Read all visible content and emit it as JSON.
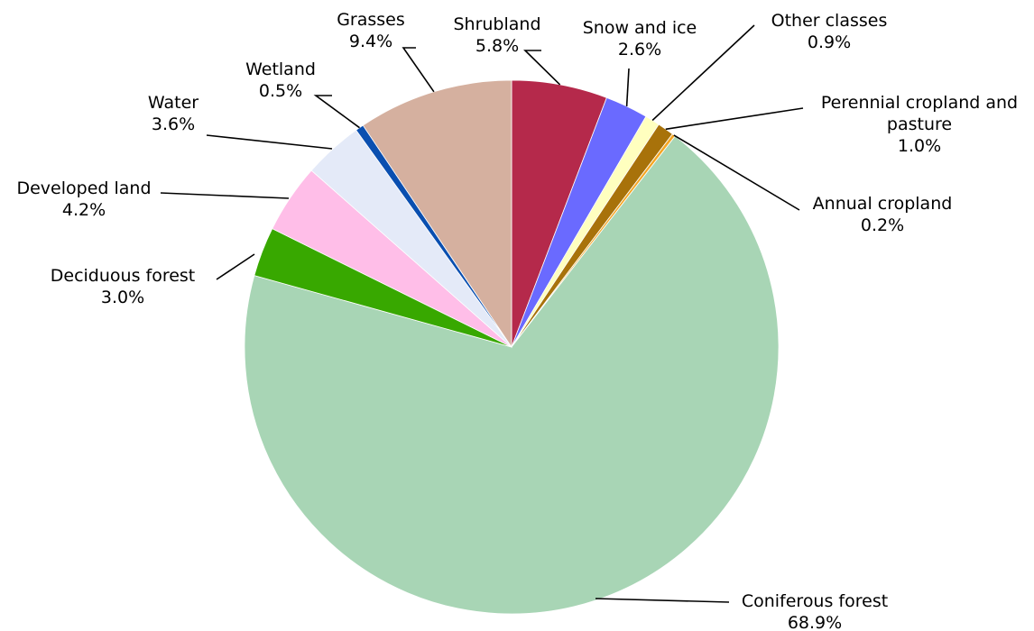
{
  "chart_data": {
    "type": "pie",
    "start": "12 o'clock",
    "direction": "clockwise",
    "slices": [
      {
        "name": "Shrubland",
        "lines": [
          "Shrubland"
        ],
        "value": 5.8,
        "value_label": "5.8%",
        "color": "#B5294B"
      },
      {
        "name": "Snow and ice",
        "lines": [
          "Snow and ice"
        ],
        "value": 2.6,
        "value_label": "2.6%",
        "color": "#6A6AFF"
      },
      {
        "name": "Other classes",
        "lines": [
          "Other classes"
        ],
        "value": 0.9,
        "value_label": "0.9%",
        "color": "#FFFFBF"
      },
      {
        "name": "Perennial cropland and pasture",
        "lines": [
          "Perennial cropland and",
          "pasture"
        ],
        "value": 1.0,
        "value_label": "1.0%",
        "color": "#A8720A"
      },
      {
        "name": "Annual cropland",
        "lines": [
          "Annual cropland"
        ],
        "value": 0.2,
        "value_label": "0.2%",
        "color": "#F5A623"
      },
      {
        "name": "Coniferous forest",
        "lines": [
          "Coniferous forest"
        ],
        "value": 68.9,
        "value_label": "68.9%",
        "color": "#A8D5B5"
      },
      {
        "name": "Deciduous forest",
        "lines": [
          "Deciduous forest"
        ],
        "value": 3.0,
        "value_label": "3.0%",
        "color": "#38A800"
      },
      {
        "name": "Developed land",
        "lines": [
          "Developed land"
        ],
        "value": 4.2,
        "value_label": "4.2%",
        "color": "#FFBEE8"
      },
      {
        "name": "Water",
        "lines": [
          "Water"
        ],
        "value": 3.6,
        "value_label": "3.6%",
        "color": "#E4EAF8"
      },
      {
        "name": "Wetland",
        "lines": [
          "Wetland"
        ],
        "value": 0.5,
        "value_label": "0.5%",
        "color": "#0A4FB0"
      },
      {
        "name": "Grasses",
        "lines": [
          "Grasses"
        ],
        "value": 9.4,
        "value_label": "9.4%",
        "color": "#D5B09F"
      }
    ]
  }
}
